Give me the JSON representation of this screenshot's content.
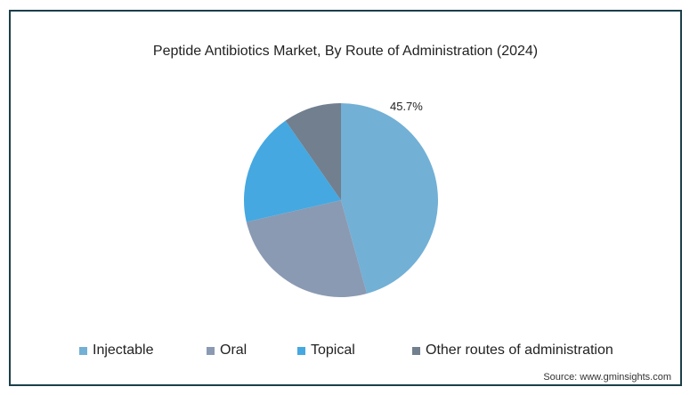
{
  "title": "Peptide Antibiotics Market, By Route of Administration (2024)",
  "source": "Source: www.gminsights.com",
  "chart_data": {
    "type": "pie",
    "title": "Peptide Antibiotics Market, By Route of Administration (2024)",
    "slices": [
      {
        "name": "Injectable",
        "value": 45.7,
        "color": "#72b0d6",
        "label": "45.7%"
      },
      {
        "name": "Oral",
        "value": 25.7,
        "color": "#8a9ab3",
        "label": ""
      },
      {
        "name": "Topical",
        "value": 18.9,
        "color": "#45a8e1",
        "label": ""
      },
      {
        "name": "Other routes of administration",
        "value": 9.7,
        "color": "#717f8f",
        "label": ""
      }
    ],
    "legend_position": "bottom"
  }
}
